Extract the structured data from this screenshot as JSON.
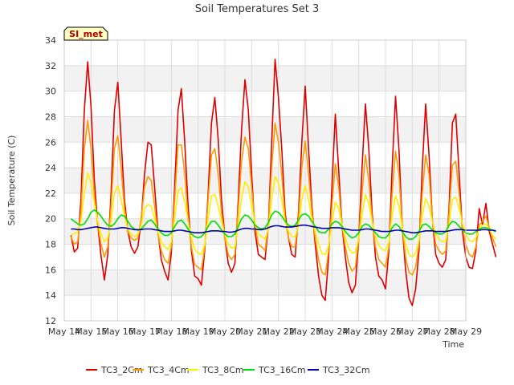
{
  "chart_data": {
    "type": "line",
    "title": "Soil Temperatures Set 3",
    "xlabel": "Time",
    "ylabel": "Soil Temperature (C)",
    "badge": "SI_met",
    "x_tick_labels": [
      "May 14",
      "May 15",
      "May 16",
      "May 17",
      "May 18",
      "May 19",
      "May 20",
      "May 21",
      "May 22",
      "May 23",
      "May 24",
      "May 25",
      "May 26",
      "May 27",
      "May 28",
      "May 29"
    ],
    "xlim": [
      0,
      15
    ],
    "ylim": [
      12,
      34
    ],
    "y_ticks": [
      12,
      14,
      16,
      18,
      20,
      22,
      24,
      26,
      28,
      30,
      32,
      34
    ],
    "grid": true,
    "legend_position": "bottom",
    "x_days_start": 0.25,
    "x_step_days": 0.125,
    "series": [
      {
        "name": "TC3_2Cm",
        "color": "#dd0000",
        "values": [
          18.7,
          17.4,
          17.7,
          21.5,
          28.5,
          32.3,
          28.8,
          23.0,
          19.5,
          17.1,
          15.2,
          17.2,
          22.0,
          28.5,
          30.7,
          26.2,
          21.5,
          19.0,
          17.8,
          17.3,
          17.8,
          19.9,
          23.5,
          26.0,
          25.8,
          22.5,
          19.0,
          16.8,
          15.9,
          15.2,
          17.3,
          22.5,
          28.5,
          30.2,
          26.0,
          21.0,
          17.5,
          15.5,
          15.3,
          14.8,
          17.6,
          22.0,
          27.5,
          29.5,
          26.2,
          21.5,
          18.5,
          16.5,
          15.8,
          16.5,
          21.5,
          27.0,
          30.9,
          28.5,
          23.5,
          19.0,
          17.2,
          17.0,
          16.8,
          19.5,
          26.0,
          32.5,
          29.5,
          25.5,
          20.5,
          18.5,
          17.2,
          17.0,
          20.5,
          26.0,
          30.4,
          25.5,
          21.0,
          18.0,
          15.5,
          14.0,
          13.6,
          17.0,
          22.5,
          28.2,
          23.8,
          19.5,
          17.0,
          15.0,
          14.2,
          14.8,
          18.5,
          24.0,
          29.0,
          25.5,
          20.5,
          17.0,
          15.5,
          15.2,
          14.5,
          17.5,
          24.0,
          29.6,
          25.5,
          19.5,
          16.0,
          13.8,
          13.2,
          14.5,
          17.5,
          24.0,
          29.0,
          25.0,
          20.0,
          17.2,
          16.5,
          16.2,
          16.8,
          21.0,
          27.5,
          28.2,
          23.5,
          19.0,
          17.0,
          16.2,
          16.1,
          17.5,
          20.8,
          19.5,
          21.2,
          19.0,
          18.0,
          17.0
        ]
      },
      {
        "name": "TC3_4Cm",
        "color": "#ff9900",
        "values": [
          18.6,
          18.0,
          18.2,
          20.5,
          25.5,
          27.7,
          25.5,
          21.8,
          19.5,
          18.0,
          17.0,
          17.8,
          21.0,
          25.5,
          26.5,
          24.0,
          20.8,
          19.0,
          18.5,
          18.3,
          18.5,
          20.0,
          22.5,
          23.3,
          23.0,
          21.0,
          18.8,
          17.5,
          16.8,
          16.5,
          17.8,
          21.5,
          25.8,
          25.8,
          23.5,
          20.0,
          17.8,
          16.4,
          16.2,
          16.0,
          17.8,
          21.5,
          25.0,
          25.5,
          23.5,
          20.5,
          18.5,
          17.2,
          16.8,
          17.2,
          20.8,
          24.5,
          26.4,
          25.5,
          22.5,
          19.5,
          18.0,
          17.8,
          17.5,
          19.5,
          24.0,
          27.5,
          26.0,
          23.5,
          20.0,
          18.5,
          17.8,
          17.8,
          20.0,
          24.0,
          26.1,
          23.5,
          20.5,
          18.5,
          16.8,
          15.8,
          15.6,
          17.5,
          21.0,
          24.3,
          22.5,
          19.5,
          17.8,
          16.5,
          15.9,
          16.2,
          18.5,
          22.0,
          25.0,
          23.0,
          20.0,
          17.8,
          16.8,
          16.5,
          16.2,
          17.8,
          22.0,
          25.3,
          23.5,
          19.5,
          17.0,
          15.8,
          15.6,
          16.2,
          18.0,
          22.0,
          25.0,
          23.5,
          20.0,
          18.0,
          17.5,
          17.2,
          17.5,
          20.5,
          24.2,
          24.5,
          22.0,
          19.3,
          18.0,
          17.2,
          17.0,
          17.8,
          19.5,
          19.8,
          20.2,
          19.3,
          18.5,
          17.8
        ]
      },
      {
        "name": "TC3_8Cm",
        "color": "#ffee00",
        "values": [
          18.8,
          18.8,
          19.0,
          19.8,
          22.0,
          23.6,
          22.8,
          21.2,
          19.8,
          18.8,
          18.2,
          18.5,
          19.8,
          22.0,
          22.6,
          21.5,
          20.2,
          19.2,
          18.8,
          18.6,
          18.8,
          19.5,
          20.8,
          21.1,
          21.0,
          20.0,
          19.0,
          18.2,
          17.8,
          17.6,
          18.2,
          20.0,
          22.2,
          22.4,
          21.3,
          19.8,
          18.5,
          17.6,
          17.3,
          17.2,
          18.0,
          20.0,
          21.8,
          21.9,
          21.0,
          19.8,
          18.8,
          18.0,
          17.7,
          17.8,
          19.5,
          21.6,
          22.9,
          22.5,
          21.0,
          19.7,
          18.8,
          18.6,
          18.4,
          19.2,
          21.5,
          23.3,
          22.8,
          21.5,
          19.8,
          19.0,
          18.6,
          18.6,
          19.5,
          21.5,
          22.6,
          21.5,
          20.0,
          19.0,
          18.0,
          17.3,
          17.2,
          17.9,
          19.6,
          21.3,
          20.8,
          19.5,
          18.5,
          17.7,
          17.3,
          17.4,
          18.5,
          20.3,
          21.9,
          21.2,
          19.8,
          18.6,
          17.9,
          17.6,
          17.5,
          18.2,
          20.3,
          21.8,
          21.0,
          19.3,
          18.0,
          17.2,
          17.0,
          17.3,
          18.3,
          20.2,
          21.6,
          21.0,
          19.8,
          18.8,
          18.4,
          18.2,
          18.3,
          19.6,
          21.5,
          21.7,
          20.8,
          19.6,
          18.8,
          18.3,
          18.2,
          18.5,
          19.2,
          19.5,
          19.6,
          19.2,
          18.7,
          18.4
        ]
      },
      {
        "name": "TC3_16Cm",
        "color": "#00dd00",
        "values": [
          20.0,
          19.8,
          19.6,
          19.5,
          19.6,
          20.0,
          20.5,
          20.7,
          20.5,
          20.2,
          19.8,
          19.5,
          19.4,
          19.6,
          20.0,
          20.3,
          20.2,
          19.8,
          19.4,
          19.2,
          19.1,
          19.2,
          19.5,
          19.8,
          19.9,
          19.6,
          19.2,
          18.9,
          18.7,
          18.7,
          18.9,
          19.4,
          19.8,
          19.9,
          19.6,
          19.2,
          18.8,
          18.6,
          18.5,
          18.6,
          18.9,
          19.4,
          19.8,
          19.8,
          19.5,
          19.1,
          18.8,
          18.6,
          18.6,
          18.8,
          19.4,
          20.0,
          20.3,
          20.2,
          19.9,
          19.5,
          19.3,
          19.2,
          19.3,
          19.7,
          20.3,
          20.6,
          20.5,
          20.2,
          19.8,
          19.5,
          19.4,
          19.5,
          19.9,
          20.3,
          20.4,
          20.2,
          19.8,
          19.4,
          19.0,
          18.9,
          18.9,
          19.2,
          19.6,
          19.8,
          19.7,
          19.4,
          19.0,
          18.7,
          18.5,
          18.6,
          18.9,
          19.4,
          19.6,
          19.5,
          19.2,
          18.9,
          18.6,
          18.5,
          18.5,
          18.8,
          19.3,
          19.6,
          19.4,
          19.0,
          18.6,
          18.4,
          18.4,
          18.6,
          19.0,
          19.5,
          19.6,
          19.4,
          19.1,
          18.9,
          18.8,
          18.8,
          19.0,
          19.5,
          19.8,
          19.7,
          19.4,
          19.1,
          18.9,
          18.8,
          18.8,
          19.0,
          19.2,
          19.3,
          19.3,
          19.2,
          19.1,
          19.0
        ]
      },
      {
        "name": "TC3_32Cm",
        "color": "#0000aa",
        "values": [
          19.2,
          19.2,
          19.15,
          19.15,
          19.2,
          19.25,
          19.3,
          19.35,
          19.35,
          19.3,
          19.25,
          19.2,
          19.2,
          19.2,
          19.25,
          19.3,
          19.3,
          19.25,
          19.2,
          19.15,
          19.15,
          19.15,
          19.2,
          19.2,
          19.2,
          19.15,
          19.1,
          19.05,
          19.0,
          19.0,
          19.0,
          19.05,
          19.1,
          19.1,
          19.05,
          19.0,
          18.95,
          18.9,
          18.9,
          18.9,
          18.95,
          19.0,
          19.05,
          19.05,
          19.05,
          19.0,
          19.0,
          18.95,
          18.95,
          19.0,
          19.1,
          19.2,
          19.25,
          19.25,
          19.2,
          19.2,
          19.15,
          19.15,
          19.2,
          19.3,
          19.4,
          19.45,
          19.45,
          19.4,
          19.35,
          19.35,
          19.35,
          19.4,
          19.45,
          19.5,
          19.5,
          19.45,
          19.4,
          19.35,
          19.3,
          19.25,
          19.25,
          19.25,
          19.3,
          19.3,
          19.3,
          19.25,
          19.2,
          19.15,
          19.1,
          19.1,
          19.1,
          19.15,
          19.2,
          19.2,
          19.15,
          19.1,
          19.05,
          19.0,
          19.0,
          19.0,
          19.05,
          19.1,
          19.1,
          19.05,
          19.0,
          18.95,
          18.9,
          18.9,
          18.95,
          19.0,
          19.05,
          19.05,
          19.05,
          19.0,
          19.0,
          19.0,
          19.0,
          19.05,
          19.1,
          19.15,
          19.15,
          19.15,
          19.1,
          19.1,
          19.1,
          19.1,
          19.1,
          19.15,
          19.15,
          19.1,
          19.1,
          19.05
        ]
      }
    ]
  }
}
